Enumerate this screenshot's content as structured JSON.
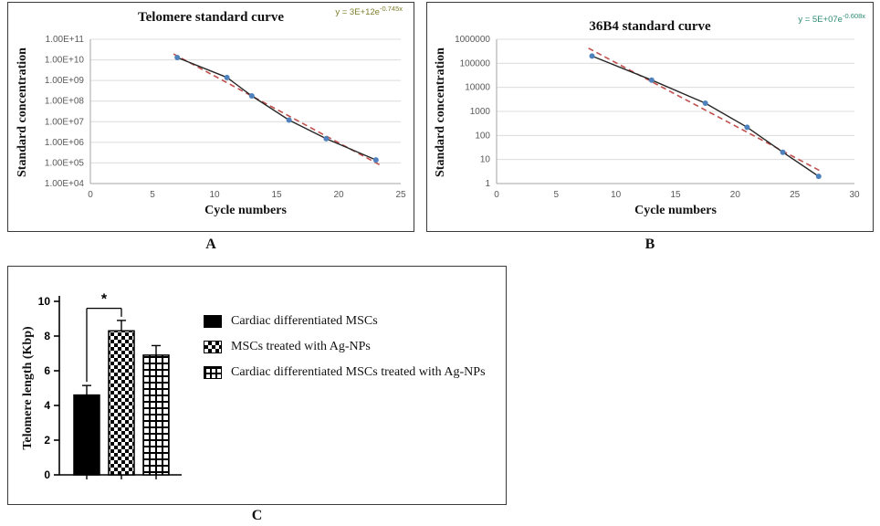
{
  "panels": {
    "a_label": "A",
    "b_label": "B",
    "c_label": "C"
  },
  "colors": {
    "point": "#4f81bd",
    "data_line": "#262626",
    "trendline": "#c0504d",
    "gridline": "#dcdcdc",
    "axis": "#a6a6a6",
    "tick_text": "#595959",
    "bar_solid": "#000000"
  },
  "chart_data": [
    {
      "id": "telomere-standard-curve",
      "type": "line",
      "title": "Telomere standard curve",
      "equation_base": "y = 3E+12e",
      "equation_exp": "-0.745x",
      "equation_color": "#7e7e2a",
      "xlabel": "Cycle numbers",
      "ylabel": "Standard concentration",
      "x": [
        7,
        11,
        13,
        16,
        19,
        23
      ],
      "y": [
        13000000000,
        1400000000,
        180000000,
        12000000,
        1500000,
        140000
      ],
      "xlim": [
        0,
        25
      ],
      "xticks": [
        0,
        5,
        10,
        15,
        20,
        25
      ],
      "ylog_range": [
        4,
        11
      ],
      "ytick_labels": [
        "1.00E+04",
        "1.00E+05",
        "1.00E+06",
        "1.00E+07",
        "1.00E+08",
        "1.00E+09",
        "1.00E+10",
        "1.00E+11"
      ],
      "legend_position": "none",
      "grid": true
    },
    {
      "id": "36b4-standard-curve",
      "type": "line",
      "title": "36B4 standard curve",
      "equation_base": "y = 5E+07e",
      "equation_exp": "-0.608x",
      "equation_color": "#2e8b74",
      "xlabel": "Cycle numbers",
      "ylabel": "Standard concentration",
      "x": [
        8,
        13,
        17.5,
        21,
        24,
        27
      ],
      "y": [
        200000,
        20000,
        2200,
        220,
        20,
        2
      ],
      "xlim": [
        0,
        30
      ],
      "xticks": [
        0,
        5,
        10,
        15,
        20,
        25,
        30
      ],
      "ylog_range": [
        0,
        6
      ],
      "ytick_labels": [
        "1",
        "10",
        "100",
        "1000",
        "10000",
        "100000",
        "1000000"
      ],
      "legend_position": "none",
      "grid": true
    },
    {
      "id": "telomere-length-bar-chart",
      "type": "bar",
      "title": "",
      "ylabel": "Telomere length (Kbp)",
      "ylim": [
        0,
        10
      ],
      "yticks": [
        0,
        2,
        4,
        6,
        8,
        10
      ],
      "categories": [
        "Cardiac differentiated MSCs",
        "MSCs treated with Ag-NPs",
        "Cardiac differentiated MSCs treated with Ag-NPs"
      ],
      "values": [
        4.6,
        8.3,
        6.9
      ],
      "errors": [
        0.55,
        0.6,
        0.55
      ],
      "patterns": [
        "solid-black",
        "checkerboard",
        "grid"
      ],
      "significance": {
        "pair": [
          0,
          1
        ],
        "label": "*"
      },
      "legend_position": "right",
      "grid": false
    }
  ]
}
